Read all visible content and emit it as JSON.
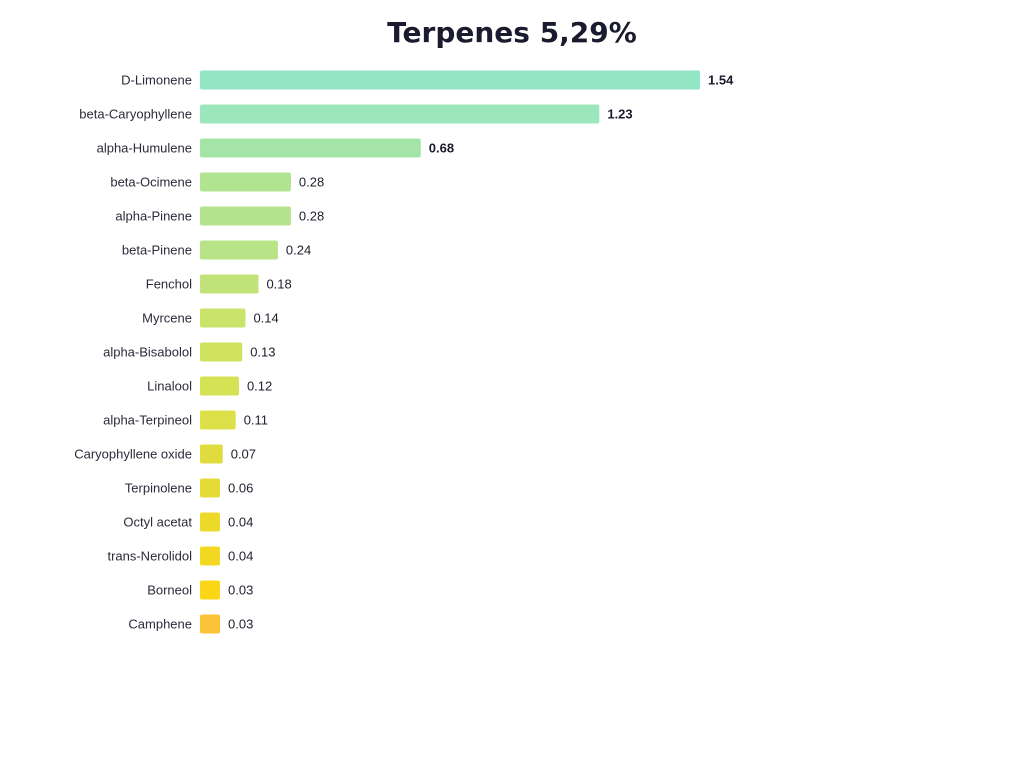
{
  "chart_data": {
    "type": "bar",
    "orientation": "horizontal",
    "title": "Terpenes 5,29%",
    "categories": [
      "D-Limonene",
      "beta-Caryophyllene",
      "alpha-Humulene",
      "beta-Ocimene",
      "alpha-Pinene",
      "beta-Pinene",
      "Fenchol",
      "Myrcene",
      "alpha-Bisabolol",
      "Linalool",
      "alpha-Terpineol",
      "Caryophyllene oxide",
      "Terpinolene",
      "Octyl acetat",
      "trans-Nerolidol",
      "Borneol",
      "Camphene"
    ],
    "values": [
      1.54,
      1.23,
      0.68,
      0.28,
      0.28,
      0.24,
      0.18,
      0.14,
      0.13,
      0.12,
      0.11,
      0.07,
      0.06,
      0.04,
      0.04,
      0.03,
      0.03
    ],
    "value_labels": [
      "1.54",
      "1.23",
      "0.68",
      "0.28",
      "0.28",
      "0.24",
      "0.18",
      "0.14",
      "0.13",
      "0.12",
      "0.11",
      "0.07",
      "0.06",
      "0.04",
      "0.04",
      "0.03",
      "0.03"
    ],
    "bold_top_n": 3,
    "colors": [
      "#93e6c4",
      "#9be7bb",
      "#a4e5a7",
      "#b0e490",
      "#b3e48d",
      "#b8e487",
      "#c1e37a",
      "#cae36a",
      "#cfe35e",
      "#d5e253",
      "#dde149",
      "#e0dc40",
      "#e5db38",
      "#ecd92a",
      "#f2d820",
      "#fbd617",
      "#fbc338"
    ],
    "xlabel": "",
    "ylabel": "",
    "grid": false,
    "legend": "none"
  }
}
